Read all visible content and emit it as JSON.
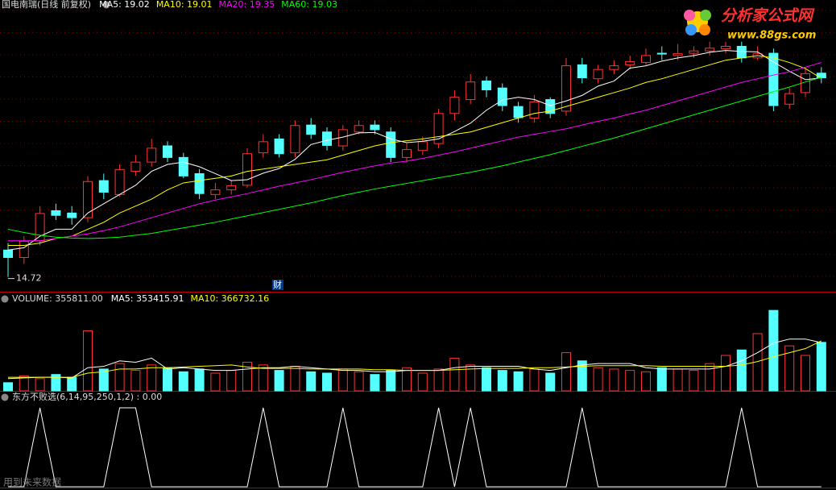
{
  "chart_data": [
    {
      "type": "candlestick",
      "title": "国电南瑞(日线 前复权)",
      "open": [
        15.3,
        15.14,
        15.5,
        16.15,
        16.1,
        16.0,
        16.8,
        16.5,
        17.0,
        17.2,
        17.55,
        17.3,
        16.95,
        16.5,
        16.6,
        16.7,
        17.4,
        17.7,
        17.4,
        18.0,
        17.85,
        17.55,
        17.85,
        18.0,
        17.85,
        17.3,
        17.45,
        17.6,
        18.25,
        18.55,
        18.95,
        18.8,
        18.4,
        18.15,
        18.55,
        18.3,
        19.3,
        19.0,
        19.2,
        19.3,
        19.35,
        19.55,
        19.5,
        19.55,
        19.6,
        19.65,
        19.7,
        19.45,
        19.55,
        18.45,
        18.7,
        19.12
      ],
      "high": [
        15.45,
        15.6,
        16.25,
        16.3,
        16.25,
        16.9,
        16.95,
        17.15,
        17.35,
        17.7,
        17.65,
        17.4,
        17.05,
        16.75,
        16.8,
        17.5,
        17.8,
        17.8,
        18.1,
        18.15,
        17.95,
        18.0,
        18.1,
        18.1,
        17.95,
        17.6,
        17.75,
        18.35,
        18.75,
        19.1,
        19.05,
        18.9,
        18.5,
        18.65,
        18.6,
        19.45,
        19.45,
        19.3,
        19.4,
        19.5,
        19.65,
        19.7,
        19.75,
        19.7,
        19.8,
        19.8,
        19.8,
        19.7,
        19.65,
        18.8,
        19.25,
        19.25
      ],
      "low": [
        14.72,
        15.0,
        15.4,
        15.95,
        15.85,
        15.9,
        16.4,
        16.45,
        16.9,
        17.1,
        17.2,
        16.85,
        16.4,
        16.4,
        16.5,
        16.65,
        17.3,
        17.3,
        17.3,
        17.7,
        17.45,
        17.45,
        17.8,
        17.8,
        17.2,
        17.2,
        17.35,
        17.5,
        18.1,
        18.45,
        18.6,
        18.3,
        18.05,
        18.05,
        18.15,
        18.2,
        18.9,
        18.9,
        19.1,
        19.2,
        19.3,
        19.4,
        19.4,
        19.45,
        19.5,
        19.55,
        19.35,
        19.4,
        18.3,
        18.35,
        18.6,
        18.9
      ],
      "close": [
        15.14,
        15.49,
        16.09,
        16.05,
        16.0,
        16.78,
        16.55,
        17.04,
        17.2,
        17.5,
        17.3,
        16.9,
        16.52,
        16.6,
        16.69,
        17.38,
        17.64,
        17.38,
        17.99,
        17.8,
        17.56,
        17.9,
        17.99,
        17.9,
        17.3,
        17.47,
        17.64,
        18.25,
        18.6,
        18.93,
        18.76,
        18.42,
        18.16,
        18.5,
        18.25,
        19.28,
        19.02,
        19.2,
        19.28,
        19.37,
        19.5,
        19.54,
        19.54,
        19.6,
        19.66,
        19.7,
        19.45,
        19.54,
        18.42,
        18.68,
        19.11,
        19.02
      ],
      "up_color": "#ff3232",
      "down_color": "#54ffff",
      "series": [
        {
          "name": "MA5: 19.02",
          "color": "#ffffff",
          "values": [
            15.3,
            15.35,
            15.6,
            15.75,
            15.75,
            16.1,
            16.3,
            16.5,
            16.7,
            17.0,
            17.15,
            17.2,
            17.1,
            16.95,
            16.8,
            16.82,
            16.96,
            17.06,
            17.26,
            17.58,
            17.67,
            17.74,
            17.83,
            17.84,
            17.7,
            17.62,
            17.65,
            17.7,
            17.86,
            18.04,
            18.32,
            18.54,
            18.6,
            18.55,
            18.42,
            18.52,
            18.64,
            18.84,
            18.95,
            19.23,
            19.28,
            19.38,
            19.45,
            19.5,
            19.57,
            19.61,
            19.59,
            19.58,
            19.36,
            19.16,
            18.98,
            19.02
          ]
        },
        {
          "name": "MA10: 19.01",
          "color": "#ffff00",
          "values": [
            15.4,
            15.4,
            15.45,
            15.55,
            15.6,
            15.75,
            15.9,
            16.1,
            16.25,
            16.4,
            16.6,
            16.75,
            16.8,
            16.85,
            16.9,
            17.0,
            17.05,
            17.1,
            17.15,
            17.2,
            17.25,
            17.35,
            17.45,
            17.55,
            17.62,
            17.66,
            17.7,
            17.75,
            17.8,
            17.85,
            17.95,
            18.05,
            18.15,
            18.25,
            18.3,
            18.4,
            18.5,
            18.6,
            18.7,
            18.8,
            18.92,
            19.0,
            19.1,
            19.2,
            19.3,
            19.4,
            19.45,
            19.5,
            19.45,
            19.35,
            19.22,
            19.01
          ]
        },
        {
          "name": "MA20: 19.35",
          "color": "#ff00ff",
          "values": [
            15.5,
            15.5,
            15.5,
            15.55,
            15.6,
            15.65,
            15.72,
            15.8,
            15.9,
            16.0,
            16.1,
            16.2,
            16.3,
            16.38,
            16.45,
            16.52,
            16.6,
            16.68,
            16.75,
            16.82,
            16.9,
            16.98,
            17.05,
            17.12,
            17.18,
            17.22,
            17.28,
            17.35,
            17.42,
            17.5,
            17.58,
            17.66,
            17.74,
            17.8,
            17.86,
            17.92,
            18.0,
            18.08,
            18.15,
            18.24,
            18.32,
            18.42,
            18.52,
            18.62,
            18.72,
            18.82,
            18.92,
            19.0,
            19.08,
            19.15,
            19.25,
            19.35
          ]
        },
        {
          "name": "MA60: 19.03",
          "color": "#00ff00",
          "values": [
            15.75,
            15.68,
            15.62,
            15.58,
            15.56,
            15.55,
            15.56,
            15.58,
            15.62,
            15.66,
            15.72,
            15.78,
            15.84,
            15.9,
            15.97,
            16.04,
            16.11,
            16.18,
            16.25,
            16.32,
            16.4,
            16.48,
            16.55,
            16.62,
            16.68,
            16.74,
            16.8,
            16.86,
            16.92,
            16.98,
            17.05,
            17.12,
            17.2,
            17.28,
            17.36,
            17.45,
            17.54,
            17.63,
            17.72,
            17.82,
            17.92,
            18.02,
            18.12,
            18.22,
            18.32,
            18.42,
            18.52,
            18.62,
            18.72,
            18.82,
            18.93,
            19.03
          ]
        }
      ],
      "min_label": 14.72,
      "annotation": "财",
      "ylim": [
        14.4,
        20.7
      ],
      "grid": true
    },
    {
      "type": "volume",
      "title": "VOLUME: 355811.00",
      "values": [
        60000,
        110000,
        90000,
        120000,
        100000,
        440000,
        160000,
        200000,
        150000,
        190000,
        170000,
        140000,
        160000,
        130000,
        150000,
        210000,
        190000,
        150000,
        180000,
        140000,
        130000,
        160000,
        140000,
        120000,
        150000,
        170000,
        130000,
        160000,
        240000,
        190000,
        170000,
        150000,
        140000,
        160000,
        130000,
        280000,
        220000,
        170000,
        160000,
        150000,
        140000,
        170000,
        160000,
        150000,
        200000,
        260000,
        300000,
        420000,
        590000,
        330000,
        260000,
        355811
      ],
      "series": [
        {
          "name": "MA5: 353415.91",
          "color": "#ffffff",
          "values": [
            90000,
            95000,
            100000,
            100000,
            95000,
            170000,
            180000,
            220000,
            210000,
            240000,
            160000,
            170000,
            160000,
            150000,
            150000,
            160000,
            170000,
            170000,
            180000,
            170000,
            160000,
            150000,
            150000,
            140000,
            140000,
            150000,
            150000,
            150000,
            170000,
            180000,
            180000,
            180000,
            180000,
            160000,
            150000,
            170000,
            190000,
            200000,
            200000,
            200000,
            170000,
            160000,
            160000,
            160000,
            160000,
            180000,
            220000,
            280000,
            350000,
            380000,
            380000,
            353415.91
          ]
        },
        {
          "name": "MA10: 366732.16",
          "color": "#ffff00",
          "values": [
            100000,
            100000,
            100000,
            100000,
            100000,
            130000,
            140000,
            160000,
            160000,
            170000,
            170000,
            175000,
            180000,
            185000,
            190000,
            175000,
            165000,
            165000,
            165000,
            160000,
            160000,
            160000,
            160000,
            155000,
            155000,
            150000,
            150000,
            150000,
            155000,
            160000,
            165000,
            165000,
            165000,
            170000,
            170000,
            175000,
            180000,
            185000,
            185000,
            185000,
            185000,
            180000,
            180000,
            180000,
            180000,
            180000,
            190000,
            215000,
            250000,
            280000,
            310000,
            366732.16
          ]
        }
      ],
      "ylim": [
        0,
        650000
      ]
    },
    {
      "type": "line",
      "title": "东方不败选(6,14,95,250,1,2) : 0.00",
      "color": "#ffffff",
      "values": [
        0,
        0,
        1,
        0,
        0,
        0,
        0,
        1,
        1,
        0,
        0,
        0,
        0,
        0,
        0,
        0,
        1,
        0,
        0,
        0,
        0,
        1,
        0,
        0,
        0,
        0,
        0,
        1,
        0,
        1,
        0,
        0,
        0,
        0,
        0,
        0,
        1,
        0,
        0,
        0,
        0,
        0,
        0,
        0,
        0,
        0,
        1,
        0,
        0,
        0,
        0,
        0
      ],
      "ylim": [
        0,
        1
      ]
    }
  ],
  "logo": {
    "name": "分析家公式网",
    "url": "www.88gs.com"
  },
  "watermark": "用到未来数据"
}
